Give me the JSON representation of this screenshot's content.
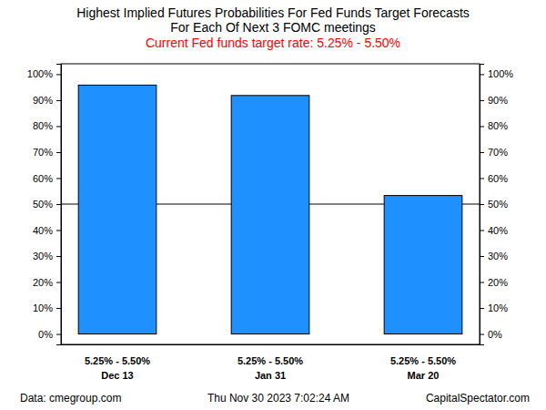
{
  "chart_data": {
    "type": "bar",
    "title": [
      "Highest Implied Futures Probabilities For Fed Funds Target Forecasts",
      "For Each Of Next 3 FOMC meetings"
    ],
    "subtitle": "Current Fed funds target rate: 5.25% - 5.50%",
    "categories": [
      "Dec 13",
      "Jan 31",
      "Mar 20"
    ],
    "forecasts": [
      "5.25% - 5.50%",
      "5.25% - 5.50%",
      "5.25% - 5.50%"
    ],
    "values": [
      95.8,
      91.8,
      53.3
    ],
    "color": "#1e90ff",
    "ylim": [
      -4,
      104
    ],
    "yticks": [
      {
        "value": 0,
        "label": "0%"
      },
      {
        "value": 10,
        "label": "10%"
      },
      {
        "value": 20,
        "label": "20%"
      },
      {
        "value": 30,
        "label": "30%"
      },
      {
        "value": 40,
        "label": "40%"
      },
      {
        "value": 50,
        "label": "50%"
      },
      {
        "value": 60,
        "label": "60%"
      },
      {
        "value": 70,
        "label": "70%"
      },
      {
        "value": 80,
        "label": "80%"
      },
      {
        "value": 90,
        "label": "90%"
      },
      {
        "value": 100,
        "label": "100%"
      }
    ],
    "hline": 50,
    "source": "Data: cmegroup.com",
    "date": "Thu Nov 30 2023 7:02:24 AM",
    "credit": "CapitalSpectator.com"
  }
}
